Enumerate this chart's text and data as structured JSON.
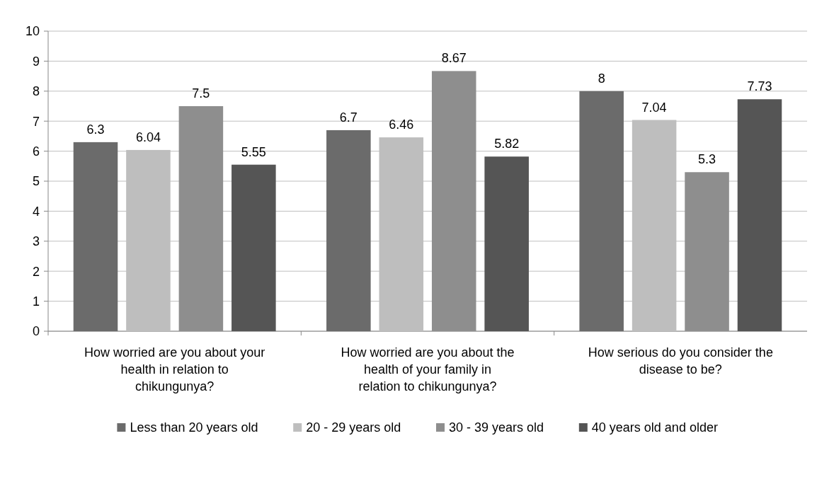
{
  "chart_data": {
    "type": "bar",
    "categories": [
      "How worried are you about your health in relation to chikungunya?",
      "How worried are you about the health of your family in relation to chikungunya?",
      "How serious do you consider the disease to be?"
    ],
    "series": [
      {
        "name": "Less than 20 years old",
        "color": "#6b6b6b",
        "values": [
          6.3,
          6.7,
          8
        ]
      },
      {
        "name": "20 - 29 years old",
        "color": "#bebebe",
        "values": [
          6.04,
          6.46,
          7.04
        ]
      },
      {
        "name": "30 - 39 years old",
        "color": "#8e8e8e",
        "values": [
          7.5,
          8.67,
          5.3
        ]
      },
      {
        "name": "40 years old and older",
        "color": "#555555",
        "values": [
          5.55,
          5.82,
          7.73
        ]
      }
    ],
    "ylim": [
      0,
      10
    ],
    "yticks": [
      0,
      1,
      2,
      3,
      4,
      5,
      6,
      7,
      8,
      9,
      10
    ],
    "grid": "y",
    "data_labels": true,
    "legend": "bottom"
  }
}
